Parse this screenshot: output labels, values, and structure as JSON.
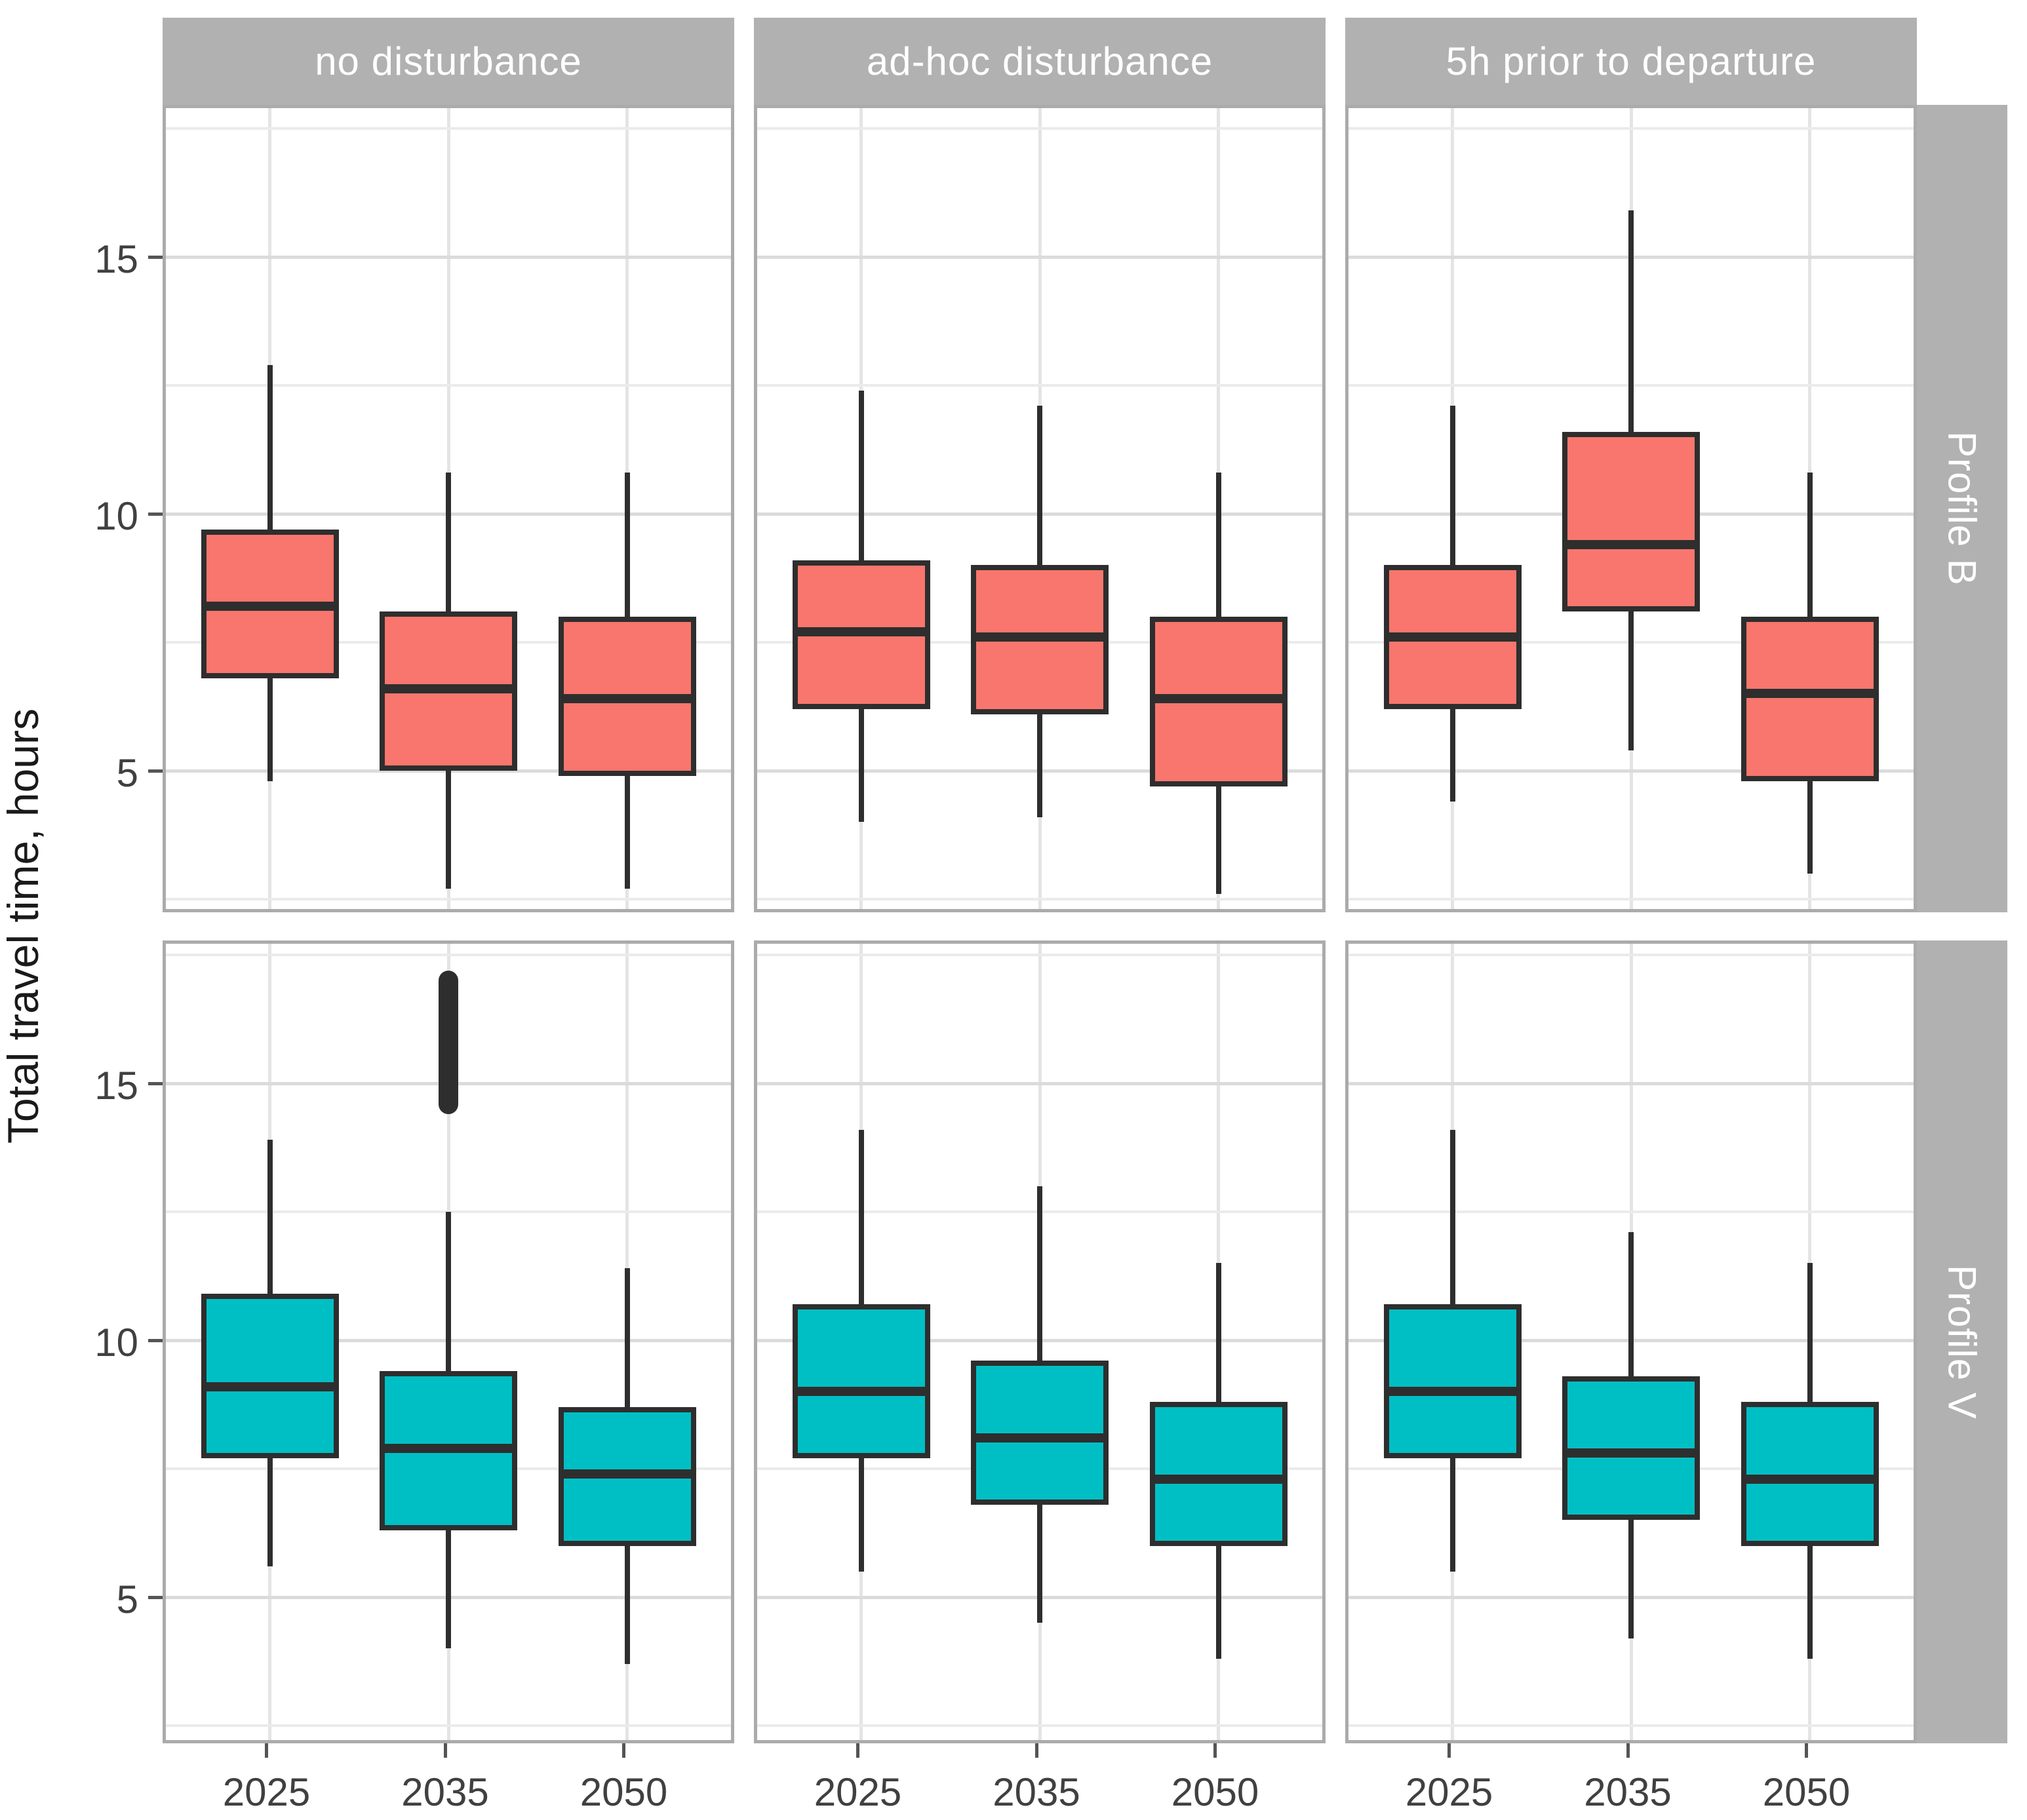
{
  "chart_data": {
    "type": "boxplot",
    "title": "",
    "ylabel": "Total travel time, hours",
    "xlabel": "",
    "categories": [
      "2025",
      "2035",
      "2050"
    ],
    "col_facets": [
      "no disturbance",
      "ad-hoc disturbance",
      "5h prior to departure"
    ],
    "row_facets": [
      "Profile B",
      "Profile V"
    ],
    "y_axis_values": [
      5,
      10,
      15
    ],
    "y_minor_values": [
      2.5,
      7.5,
      12.5,
      17.5
    ],
    "y_range": [
      2.2,
      17.9
    ],
    "grid": true,
    "legend_position": "none",
    "colors": {
      "profile_b_fill": "#F8766D",
      "profile_v_fill": "#00BFC4",
      "box_stroke": "#2E2E2E",
      "strip_bg": "#B1B1B1",
      "strip_text": "#FFFFFF",
      "grid_major": "#DBDBDB",
      "grid_minor": "#EBEBEB",
      "vgrid": "#E4E4E4",
      "panel_border": "#ABABAB",
      "axis_text": "#404040",
      "tick_mark": "#555555"
    },
    "series": [
      {
        "row_facet": "Profile B",
        "fill": "#F8766D",
        "panels": [
          {
            "col_facet": "no disturbance",
            "boxes": [
              {
                "category": "2025",
                "whisker_low": 4.8,
                "q1": 6.8,
                "median": 8.2,
                "q3": 9.7,
                "whisker_high": 12.9
              },
              {
                "category": "2035",
                "whisker_low": 2.7,
                "q1": 5.0,
                "median": 6.6,
                "q3": 8.1,
                "whisker_high": 10.8
              },
              {
                "category": "2050",
                "whisker_low": 2.7,
                "q1": 4.9,
                "median": 6.4,
                "q3": 8.0,
                "whisker_high": 10.8
              }
            ]
          },
          {
            "col_facet": "ad-hoc disturbance",
            "boxes": [
              {
                "category": "2025",
                "whisker_low": 4.0,
                "q1": 6.2,
                "median": 7.7,
                "q3": 9.1,
                "whisker_high": 12.4
              },
              {
                "category": "2035",
                "whisker_low": 4.1,
                "q1": 6.1,
                "median": 7.6,
                "q3": 9.0,
                "whisker_high": 12.1
              },
              {
                "category": "2050",
                "whisker_low": 2.6,
                "q1": 4.7,
                "median": 6.4,
                "q3": 8.0,
                "whisker_high": 10.8
              }
            ]
          },
          {
            "col_facet": "5h prior to departure",
            "boxes": [
              {
                "category": "2025",
                "whisker_low": 4.4,
                "q1": 6.2,
                "median": 7.6,
                "q3": 9.0,
                "whisker_high": 12.1
              },
              {
                "category": "2035",
                "whisker_low": 5.4,
                "q1": 8.1,
                "median": 9.4,
                "q3": 11.6,
                "whisker_high": 15.9
              },
              {
                "category": "2050",
                "whisker_low": 3.0,
                "q1": 4.8,
                "median": 6.5,
                "q3": 8.0,
                "whisker_high": 10.8
              }
            ]
          }
        ]
      },
      {
        "row_facet": "Profile V",
        "fill": "#00BFC4",
        "panels": [
          {
            "col_facet": "no disturbance",
            "boxes": [
              {
                "category": "2025",
                "whisker_low": 5.6,
                "q1": 7.7,
                "median": 9.1,
                "q3": 10.9,
                "whisker_high": 13.9
              },
              {
                "category": "2035",
                "whisker_low": 4.0,
                "q1": 6.3,
                "median": 7.9,
                "q3": 9.4,
                "whisker_high": 12.5,
                "outliers_range": [
                  14.4,
                  17.2
                ]
              },
              {
                "category": "2050",
                "whisker_low": 3.7,
                "q1": 6.0,
                "median": 7.4,
                "q3": 8.7,
                "whisker_high": 11.4
              }
            ]
          },
          {
            "col_facet": "ad-hoc disturbance",
            "boxes": [
              {
                "category": "2025",
                "whisker_low": 5.5,
                "q1": 7.7,
                "median": 9.0,
                "q3": 10.7,
                "whisker_high": 14.1
              },
              {
                "category": "2035",
                "whisker_low": 4.5,
                "q1": 6.8,
                "median": 8.1,
                "q3": 9.6,
                "whisker_high": 13.0
              },
              {
                "category": "2050",
                "whisker_low": 3.8,
                "q1": 6.0,
                "median": 7.3,
                "q3": 8.8,
                "whisker_high": 11.5
              }
            ]
          },
          {
            "col_facet": "5h prior to departure",
            "boxes": [
              {
                "category": "2025",
                "whisker_low": 5.5,
                "q1": 7.7,
                "median": 9.0,
                "q3": 10.7,
                "whisker_high": 14.1
              },
              {
                "category": "2035",
                "whisker_low": 4.2,
                "q1": 6.5,
                "median": 7.8,
                "q3": 9.3,
                "whisker_high": 12.1
              },
              {
                "category": "2050",
                "whisker_low": 3.8,
                "q1": 6.0,
                "median": 7.3,
                "q3": 8.8,
                "whisker_high": 11.5
              }
            ]
          }
        ]
      }
    ]
  }
}
